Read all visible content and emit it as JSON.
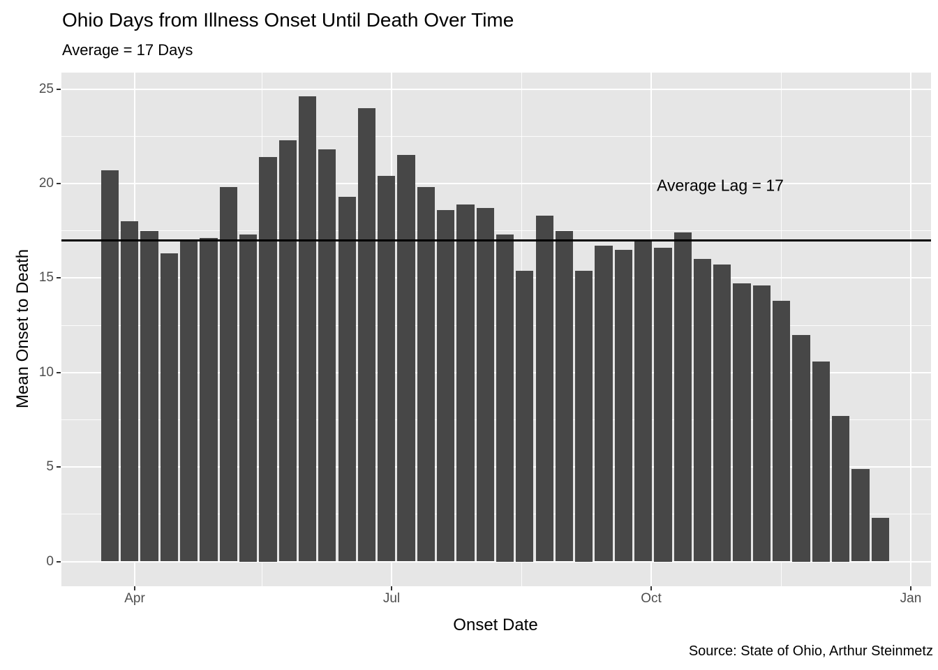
{
  "title": "Ohio Days from Illness Onset Until Death Over Time",
  "subtitle": "Average = 17 Days",
  "annotation": "Average Lag = 17",
  "caption": "Source: State of Ohio, Arthur Steinmetz",
  "x_axis_title": "Onset Date",
  "y_axis_title": "Mean Onset to Death",
  "colors": {
    "bar": "#474747",
    "panel_background": "#E6E6E6",
    "gridline": "#FFFFFF",
    "average_line": "#000000",
    "axis_text": "#4D4D4D",
    "tick_mark": "#333333",
    "text": "#000000"
  },
  "chart_data": {
    "type": "bar",
    "title": "Ohio Days from Illness Onset Until Death Over Time",
    "subtitle": "Average = 17 Days",
    "xlabel": "Onset Date",
    "ylabel": "Mean Onset to Death",
    "x_tick_labels": [
      "Apr",
      "Jul",
      "Oct",
      "Jan"
    ],
    "y_ticks": [
      0,
      5,
      10,
      15,
      20,
      25
    ],
    "y_minor_ticks": [
      2.5,
      7.5,
      12.5,
      17.5,
      22.5
    ],
    "ylim": [
      0,
      25
    ],
    "grid": true,
    "legend": false,
    "bar_unit": "week",
    "average_line_value": 17,
    "annotation_text": "Average Lag = 17",
    "x": [
      "2020-03-23",
      "2020-03-30",
      "2020-04-06",
      "2020-04-13",
      "2020-04-20",
      "2020-04-27",
      "2020-05-04",
      "2020-05-11",
      "2020-05-18",
      "2020-05-25",
      "2020-06-01",
      "2020-06-08",
      "2020-06-15",
      "2020-06-22",
      "2020-06-29",
      "2020-07-06",
      "2020-07-13",
      "2020-07-20",
      "2020-07-27",
      "2020-08-03",
      "2020-08-10",
      "2020-08-17",
      "2020-08-24",
      "2020-08-31",
      "2020-09-07",
      "2020-09-14",
      "2020-09-21",
      "2020-09-28",
      "2020-10-05",
      "2020-10-12",
      "2020-10-19",
      "2020-10-26",
      "2020-11-02",
      "2020-11-09",
      "2020-11-16",
      "2020-11-23",
      "2020-11-30",
      "2020-12-07",
      "2020-12-14",
      "2020-12-21"
    ],
    "values": [
      20.7,
      18.0,
      17.5,
      16.3,
      17.0,
      17.1,
      19.8,
      17.3,
      21.4,
      22.3,
      24.6,
      21.8,
      19.3,
      24.0,
      20.4,
      21.5,
      19.8,
      18.6,
      18.9,
      18.7,
      17.3,
      15.4,
      18.3,
      17.5,
      15.4,
      16.7,
      16.5,
      17.0,
      16.6,
      17.4,
      16.0,
      15.7,
      14.7,
      14.6,
      13.8,
      12.0,
      10.6,
      7.7,
      4.9,
      2.3
    ]
  }
}
